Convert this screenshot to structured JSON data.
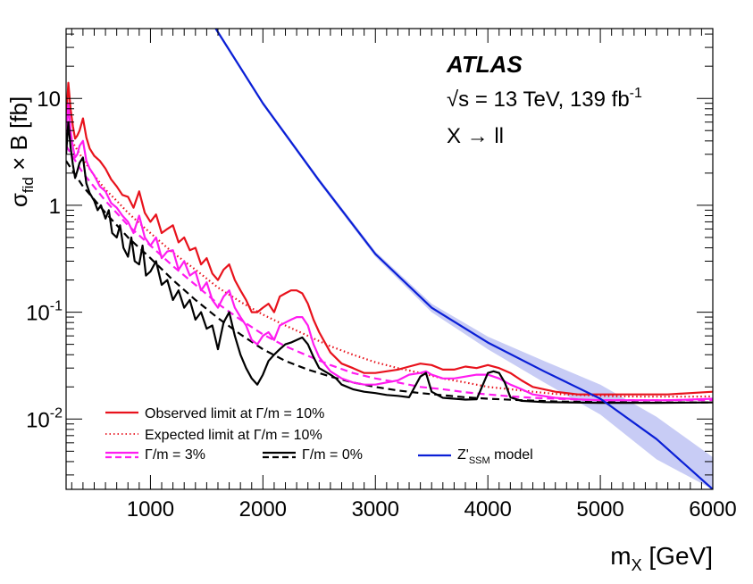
{
  "chart_data": {
    "type": "line",
    "experiment": "ATLAS",
    "energy_lumi": {
      "pre": "√",
      "s": "s = 13 TeV, 139 fb",
      "sup": "-1"
    },
    "process": "X → ll",
    "ylabel": {
      "main": "σ",
      "sub": "fid",
      "rest": " × B [fb]"
    },
    "xlabel": {
      "main": "m",
      "sub": "X",
      "rest": " [GeV]"
    },
    "x_range": [
      250,
      6000
    ],
    "y_range": [
      0.0022,
      45
    ],
    "y_scale": "log",
    "x_ticks": [
      1000,
      2000,
      3000,
      4000,
      5000,
      6000
    ],
    "x_tick_labels": [
      "1000",
      "2000",
      "3000",
      "4000",
      "5000",
      "6000"
    ],
    "y_ticks": [
      0.01,
      0.1,
      1,
      10
    ],
    "y_tick_labels": [
      {
        "base": "10",
        "exp": "-2"
      },
      {
        "base": "10",
        "exp": "-1"
      },
      {
        "base": "1",
        "exp": ""
      },
      {
        "base": "10",
        "exp": ""
      }
    ],
    "grid": false,
    "legend_position": "bottom-left",
    "colors": {
      "observed": "#e8121c",
      "expected": "#e8121c",
      "width3": "#ff1cf0",
      "width0": "#000000",
      "model": "#0a1fd6",
      "band": "#9aa2ec"
    },
    "legend": {
      "observed": "Observed limit at Γ/m = 10%",
      "expected": "Expected limit at Γ/m = 10%",
      "width3": "Γ/m = 3%",
      "width0": "Γ/m = 0%",
      "model": {
        "main": "Z'",
        "sub": "SSM",
        "rest": " model"
      }
    },
    "series": [
      {
        "name": "Observed limit at Γ/m = 10%",
        "style": "solid",
        "x": [
          250,
          270,
          290,
          310,
          330,
          350,
          370,
          400,
          430,
          460,
          500,
          550,
          600,
          650,
          700,
          750,
          800,
          850,
          900,
          950,
          1000,
          1050,
          1100,
          1150,
          1200,
          1250,
          1300,
          1350,
          1400,
          1450,
          1500,
          1550,
          1600,
          1650,
          1700,
          1750,
          1800,
          1850,
          1900,
          1950,
          2000,
          2050,
          2100,
          2150,
          2200,
          2250,
          2300,
          2350,
          2400,
          2450,
          2500,
          2600,
          2700,
          2800,
          2900,
          3000,
          3100,
          3200,
          3300,
          3400,
          3500,
          3600,
          3700,
          3800,
          3900,
          4000,
          4100,
          4200,
          4300,
          4400,
          4600,
          4800,
          5000,
          5200,
          5400,
          5600,
          5800,
          6000
        ],
        "y": [
          6.0,
          14.0,
          8.0,
          5.5,
          4.2,
          4.5,
          5.0,
          6.5,
          4.3,
          3.4,
          2.9,
          2.6,
          2.2,
          1.75,
          1.5,
          1.25,
          1.2,
          0.95,
          1.35,
          0.85,
          0.7,
          0.82,
          0.55,
          0.6,
          0.65,
          0.45,
          0.5,
          0.38,
          0.4,
          0.28,
          0.32,
          0.23,
          0.2,
          0.25,
          0.28,
          0.2,
          0.16,
          0.13,
          0.1,
          0.1,
          0.11,
          0.12,
          0.1,
          0.14,
          0.15,
          0.16,
          0.16,
          0.15,
          0.12,
          0.085,
          0.065,
          0.042,
          0.033,
          0.03,
          0.027,
          0.027,
          0.028,
          0.029,
          0.031,
          0.033,
          0.032,
          0.029,
          0.029,
          0.031,
          0.03,
          0.032,
          0.03,
          0.027,
          0.023,
          0.02,
          0.018,
          0.017,
          0.017,
          0.017,
          0.017,
          0.017,
          0.0175,
          0.018
        ]
      },
      {
        "name": "Expected limit at Γ/m = 10%",
        "style": "dotted",
        "x": [
          250,
          300,
          400,
          500,
          600,
          700,
          800,
          1000,
          1200,
          1400,
          1600,
          1800,
          2000,
          2200,
          2400,
          2600,
          2800,
          3000,
          3200,
          3400,
          3600,
          3800,
          4000,
          4200,
          4400,
          4600,
          4800,
          5000,
          5200,
          5400,
          5600,
          5800,
          6000
        ],
        "y": [
          5.5,
          4.0,
          2.7,
          1.9,
          1.4,
          1.1,
          0.85,
          0.55,
          0.36,
          0.25,
          0.17,
          0.125,
          0.095,
          0.075,
          0.06,
          0.048,
          0.04,
          0.034,
          0.03,
          0.027,
          0.024,
          0.022,
          0.02,
          0.019,
          0.018,
          0.0172,
          0.0168,
          0.0165,
          0.0163,
          0.0162,
          0.0162,
          0.0162,
          0.0163
        ]
      },
      {
        "name": "Γ/m = 3%",
        "style": "solid",
        "x": [
          250,
          270,
          290,
          310,
          330,
          350,
          370,
          400,
          430,
          460,
          500,
          550,
          600,
          650,
          700,
          750,
          800,
          850,
          900,
          950,
          1000,
          1050,
          1100,
          1150,
          1200,
          1250,
          1300,
          1350,
          1400,
          1450,
          1500,
          1550,
          1600,
          1650,
          1700,
          1750,
          1800,
          1850,
          1900,
          1950,
          2000,
          2050,
          2100,
          2150,
          2200,
          2250,
          2300,
          2350,
          2400,
          2450,
          2500,
          2600,
          2700,
          2800,
          2900,
          3000,
          3100,
          3200,
          3300,
          3400,
          3450,
          3500,
          3600,
          3700,
          3800,
          3900,
          4000,
          4100,
          4200,
          4300,
          4400,
          4600,
          4800,
          5000,
          5200,
          5400,
          5600,
          5800,
          6000
        ],
        "y": [
          4.0,
          9.0,
          5.0,
          3.5,
          2.8,
          3.0,
          3.6,
          4.0,
          2.6,
          2.2,
          1.9,
          1.5,
          1.35,
          1.05,
          0.95,
          0.8,
          0.7,
          0.55,
          0.8,
          0.5,
          0.42,
          0.5,
          0.32,
          0.37,
          0.38,
          0.25,
          0.3,
          0.22,
          0.24,
          0.16,
          0.19,
          0.13,
          0.11,
          0.14,
          0.16,
          0.11,
          0.09,
          0.075,
          0.055,
          0.05,
          0.06,
          0.065,
          0.055,
          0.075,
          0.08,
          0.085,
          0.09,
          0.09,
          0.075,
          0.05,
          0.038,
          0.028,
          0.024,
          0.022,
          0.021,
          0.021,
          0.022,
          0.023,
          0.026,
          0.027,
          0.028,
          0.026,
          0.024,
          0.024,
          0.025,
          0.026,
          0.026,
          0.024,
          0.021,
          0.019,
          0.017,
          0.0158,
          0.0153,
          0.015,
          0.015,
          0.015,
          0.015,
          0.0152,
          0.0155
        ]
      },
      {
        "name": "Γ/m = 3% expected",
        "style": "dashed",
        "x": [
          250,
          400,
          600,
          800,
          1000,
          1200,
          1400,
          1600,
          1800,
          2000,
          2200,
          2400,
          2600,
          2800,
          3000,
          3200,
          3400,
          3600,
          3800,
          4000,
          4200,
          4400,
          4600,
          4800,
          5000,
          5400,
          6000
        ],
        "y": [
          3.6,
          2.0,
          1.1,
          0.65,
          0.42,
          0.27,
          0.18,
          0.12,
          0.085,
          0.062,
          0.048,
          0.039,
          0.032,
          0.027,
          0.024,
          0.022,
          0.02,
          0.019,
          0.0178,
          0.017,
          0.0163,
          0.0158,
          0.0155,
          0.0152,
          0.015,
          0.015,
          0.015
        ]
      },
      {
        "name": "Γ/m = 0%",
        "style": "solid",
        "x": [
          250,
          270,
          290,
          310,
          330,
          350,
          370,
          400,
          430,
          460,
          500,
          530,
          560,
          600,
          630,
          660,
          700,
          730,
          760,
          800,
          830,
          860,
          900,
          930,
          960,
          1000,
          1050,
          1100,
          1150,
          1200,
          1250,
          1300,
          1350,
          1400,
          1450,
          1500,
          1550,
          1600,
          1625,
          1650,
          1700,
          1750,
          1800,
          1850,
          1900,
          1950,
          2000,
          2050,
          2100,
          2150,
          2200,
          2250,
          2300,
          2350,
          2400,
          2450,
          2500,
          2600,
          2650,
          2700,
          2800,
          2900,
          3000,
          3100,
          3200,
          3300,
          3400,
          3450,
          3500,
          3600,
          3700,
          3800,
          3900,
          4000,
          4050,
          4100,
          4150,
          4200,
          4300,
          4500,
          5000,
          5500,
          6000
        ],
        "y": [
          3.0,
          6.0,
          3.5,
          2.4,
          1.8,
          2.1,
          2.5,
          2.8,
          1.6,
          1.3,
          1.1,
          0.9,
          1.0,
          0.75,
          0.9,
          0.55,
          0.5,
          0.65,
          0.4,
          0.33,
          0.5,
          0.3,
          0.28,
          0.42,
          0.22,
          0.24,
          0.3,
          0.18,
          0.2,
          0.13,
          0.16,
          0.11,
          0.13,
          0.085,
          0.1,
          0.07,
          0.075,
          0.045,
          0.06,
          0.08,
          0.1,
          0.06,
          0.04,
          0.03,
          0.024,
          0.021,
          0.026,
          0.035,
          0.04,
          0.045,
          0.05,
          0.052,
          0.055,
          0.058,
          0.05,
          0.038,
          0.03,
          0.026,
          0.024,
          0.021,
          0.019,
          0.018,
          0.0175,
          0.0168,
          0.0165,
          0.016,
          0.025,
          0.027,
          0.018,
          0.0158,
          0.0155,
          0.0152,
          0.0153,
          0.027,
          0.028,
          0.027,
          0.022,
          0.016,
          0.0148,
          0.0144,
          0.0142,
          0.0142,
          0.0143
        ]
      },
      {
        "name": "Γ/m = 0% expected",
        "style": "dashed",
        "x": [
          250,
          400,
          600,
          800,
          1000,
          1200,
          1400,
          1600,
          1800,
          2000,
          2200,
          2400,
          2600,
          2800,
          3000,
          3200,
          3400,
          3600,
          3800,
          4000,
          4300,
          4600,
          5000,
          5400,
          6000
        ],
        "y": [
          2.6,
          1.5,
          0.85,
          0.5,
          0.32,
          0.2,
          0.13,
          0.088,
          0.062,
          0.045,
          0.035,
          0.029,
          0.025,
          0.022,
          0.02,
          0.0185,
          0.0175,
          0.0167,
          0.016,
          0.0155,
          0.015,
          0.0146,
          0.0144,
          0.0143,
          0.0143
        ]
      },
      {
        "name": "Z'SSM model",
        "style": "solid",
        "x": [
          1580,
          2000,
          2500,
          3000,
          3500,
          4000,
          4500,
          5000,
          5500,
          6000
        ],
        "y": [
          45,
          9.0,
          1.7,
          0.35,
          0.11,
          0.052,
          0.028,
          0.0155,
          0.0065,
          0.0022
        ]
      },
      {
        "name": "Z'SSM model band",
        "style": "band",
        "x": [
          1580,
          2000,
          2500,
          3000,
          3500,
          4000,
          4500,
          5000,
          5500,
          6000
        ],
        "y_low": [
          43,
          8.6,
          1.62,
          0.33,
          0.1,
          0.045,
          0.022,
          0.011,
          0.0042,
          0.0022
        ],
        "y_high": [
          47,
          9.4,
          1.78,
          0.37,
          0.12,
          0.059,
          0.035,
          0.021,
          0.0105,
          0.0044
        ]
      }
    ]
  }
}
